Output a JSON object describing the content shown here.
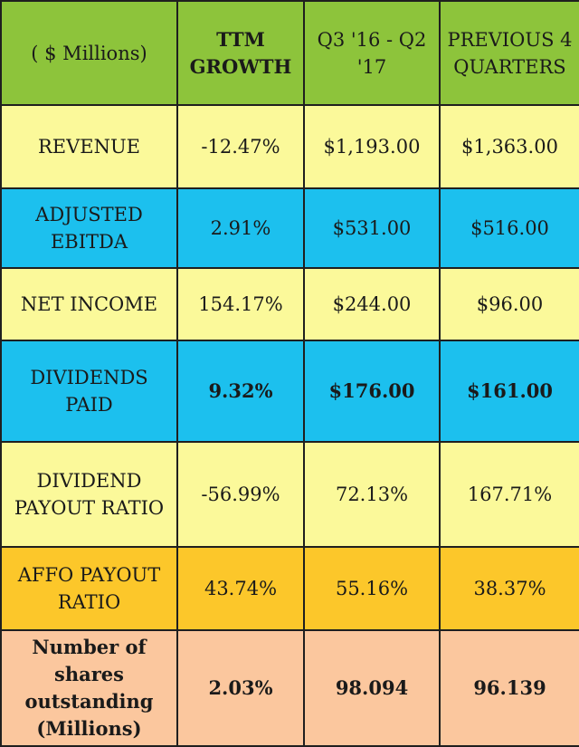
{
  "header": {
    "col0": "( $ Millions)",
    "col1": "TTM GROWTH",
    "col2": "Q3 '16 - Q2 '17",
    "col3": "PREVIOUS 4 QUARTERS"
  },
  "rows": [
    {
      "label": "REVENUE",
      "growth": "-12.47%",
      "current": "$1,193.00",
      "previous": "$1,363.00"
    },
    {
      "label": "ADJUSTED EBITDA",
      "growth": "2.91%",
      "current": "$531.00",
      "previous": "$516.00"
    },
    {
      "label": "NET INCOME",
      "growth": "154.17%",
      "current": "$244.00",
      "previous": "$96.00"
    },
    {
      "label": "DIVIDENDS PAID",
      "growth": "9.32%",
      "current": "$176.00",
      "previous": "$161.00"
    },
    {
      "label": "DIVIDEND PAYOUT RATIO",
      "growth": "-56.99%",
      "current": "72.13%",
      "previous": "167.71%"
    },
    {
      "label": "AFFO PAYOUT RATIO",
      "growth": "43.74%",
      "current": "55.16%",
      "previous": "38.37%"
    },
    {
      "label": "Number of shares outstanding (Millions)",
      "growth": "2.03%",
      "current": "98.094",
      "previous": "96.139"
    }
  ],
  "colors": {
    "header_green": "#8dc43b",
    "row_yellow": "#fbf99a",
    "row_blue": "#1cc0ee",
    "row_amber": "#fcc72a",
    "row_peach": "#fbc79e"
  }
}
